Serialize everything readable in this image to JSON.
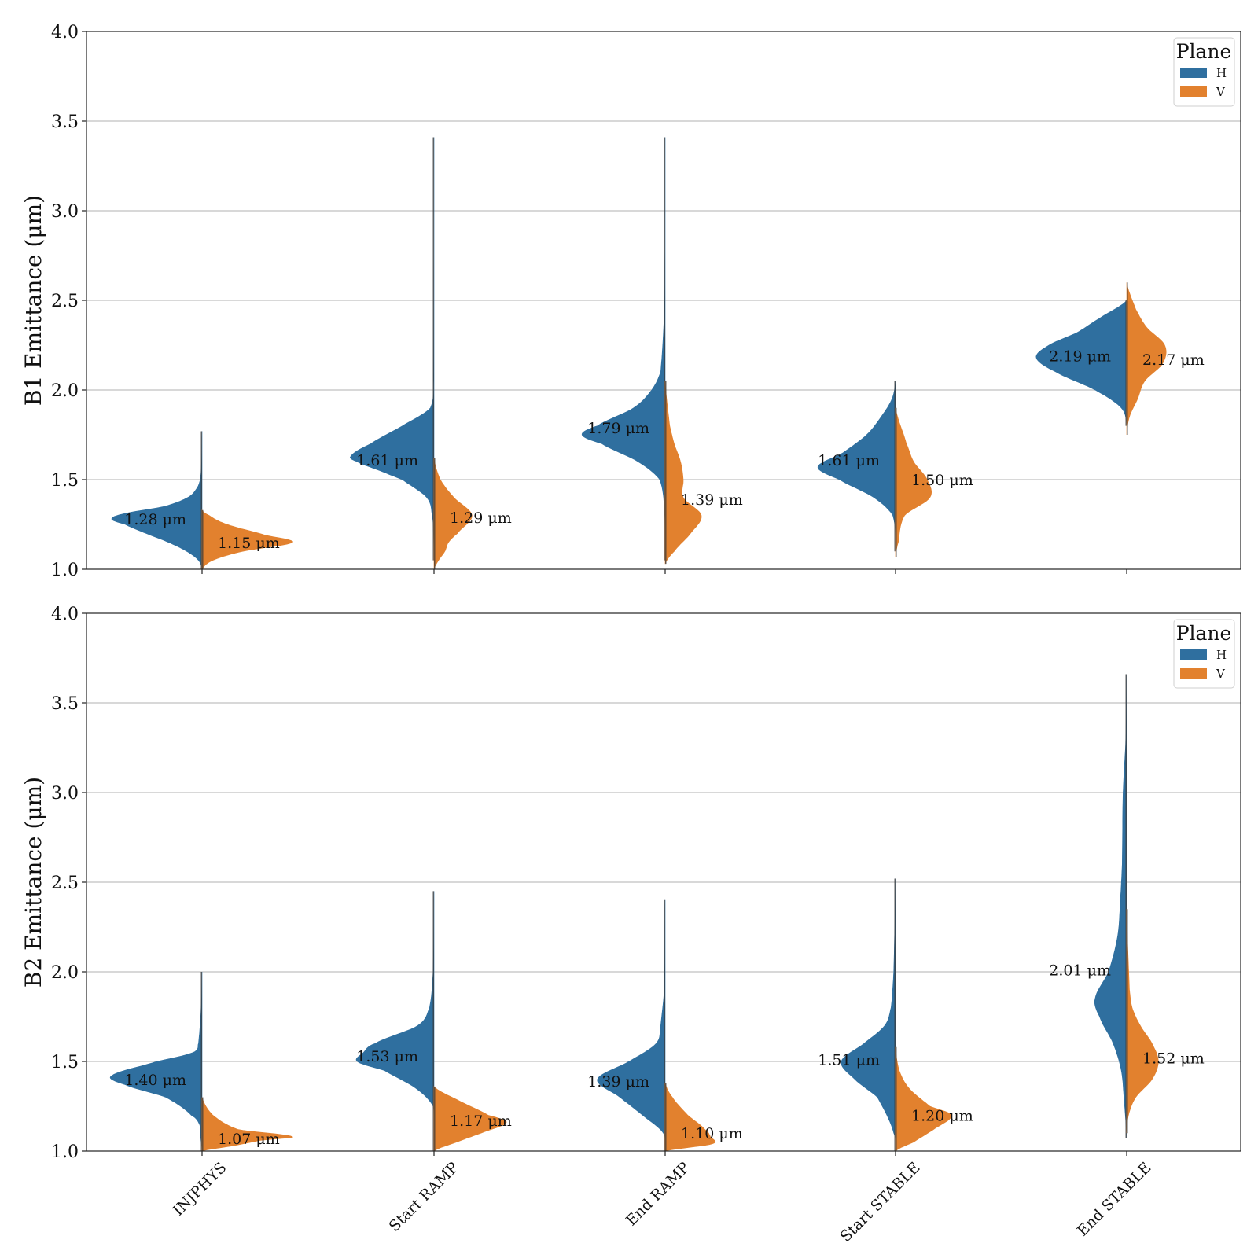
{
  "chart_data": [
    {
      "type": "violin",
      "ylabel": "B1 Emittance (μm)",
      "ylim": [
        1.0,
        4.0
      ],
      "yticks": [
        "1.0",
        "1.5",
        "2.0",
        "2.5",
        "3.0",
        "3.5",
        "4.0"
      ],
      "grid": true,
      "legend": {
        "title": "Plane",
        "placement": "top-right",
        "entries": [
          "H",
          "V"
        ]
      },
      "categories": [
        "INJPHYS",
        "Start RAMP",
        "End RAMP",
        "Start STABLE",
        "End STABLE"
      ],
      "series": [
        {
          "name": "H",
          "color": "#2f6f9f",
          "median_labels": [
            "1.28 μm",
            "1.61 μm",
            "1.79 μm",
            "1.61 μm",
            "2.19 μm"
          ],
          "medians": [
            1.28,
            1.61,
            1.79,
            1.61,
            2.19
          ],
          "range": [
            [
              1.0,
              1.77
            ],
            [
              1.05,
              3.41
            ],
            [
              1.05,
              3.41
            ],
            [
              1.1,
              2.05
            ],
            [
              1.8,
              2.5
            ]
          ],
          "density": [
            [
              [
                1.0,
                0
              ],
              [
                1.05,
                0.04
              ],
              [
                1.1,
                0.17
              ],
              [
                1.15,
                0.37
              ],
              [
                1.2,
                0.62
              ],
              [
                1.25,
                0.85
              ],
              [
                1.28,
                1.0
              ],
              [
                1.31,
                0.86
              ],
              [
                1.35,
                0.42
              ],
              [
                1.4,
                0.16
              ],
              [
                1.45,
                0.06
              ],
              [
                1.5,
                0.02
              ],
              [
                1.6,
                0.005
              ],
              [
                1.77,
                0
              ]
            ],
            [
              [
                1.05,
                0
              ],
              [
                1.2,
                0.006
              ],
              [
                1.3,
                0.02
              ],
              [
                1.4,
                0.08
              ],
              [
                1.5,
                0.35
              ],
              [
                1.55,
                0.6
              ],
              [
                1.6,
                0.85
              ],
              [
                1.63,
                0.92
              ],
              [
                1.7,
                0.7
              ],
              [
                1.8,
                0.35
              ],
              [
                1.9,
                0.04
              ],
              [
                2.1,
                0.005
              ],
              [
                3.41,
                0
              ]
            ],
            [
              [
                1.05,
                0
              ],
              [
                1.3,
                0.005
              ],
              [
                1.5,
                0.06
              ],
              [
                1.6,
                0.3
              ],
              [
                1.7,
                0.7
              ],
              [
                1.75,
                0.92
              ],
              [
                1.8,
                0.75
              ],
              [
                1.9,
                0.35
              ],
              [
                2.0,
                0.15
              ],
              [
                2.1,
                0.05
              ],
              [
                2.5,
                0.005
              ],
              [
                3.41,
                0
              ]
            ],
            [
              [
                1.1,
                0
              ],
              [
                1.3,
                0.03
              ],
              [
                1.4,
                0.24
              ],
              [
                1.5,
                0.62
              ],
              [
                1.57,
                0.86
              ],
              [
                1.65,
                0.58
              ],
              [
                1.75,
                0.32
              ],
              [
                1.85,
                0.16
              ],
              [
                1.95,
                0.04
              ],
              [
                2.05,
                0
              ]
            ],
            [
              [
                1.8,
                0
              ],
              [
                1.9,
                0.06
              ],
              [
                2.0,
                0.35
              ],
              [
                2.1,
                0.78
              ],
              [
                2.18,
                1.0
              ],
              [
                2.25,
                0.86
              ],
              [
                2.32,
                0.55
              ],
              [
                2.4,
                0.3
              ],
              [
                2.5,
                0
              ]
            ]
          ]
        },
        {
          "name": "V",
          "color": "#e2812e",
          "median_labels": [
            "1.15 μm",
            "1.29 μm",
            "1.39 μm",
            "1.50 μm",
            "2.17 μm"
          ],
          "medians": [
            1.15,
            1.29,
            1.39,
            1.5,
            2.17
          ],
          "range": [
            [
              1.0,
              1.33
            ],
            [
              1.0,
              1.62
            ],
            [
              1.03,
              2.05
            ],
            [
              1.07,
              1.9
            ],
            [
              1.75,
              2.6
            ]
          ],
          "density": [
            [
              [
                1.0,
                0
              ],
              [
                1.05,
                0.12
              ],
              [
                1.1,
                0.45
              ],
              [
                1.15,
                1.0
              ],
              [
                1.19,
                0.7
              ],
              [
                1.25,
                0.28
              ],
              [
                1.3,
                0.08
              ],
              [
                1.33,
                0
              ]
            ],
            [
              [
                1.0,
                0
              ],
              [
                1.05,
                0.05
              ],
              [
                1.1,
                0.12
              ],
              [
                1.15,
                0.16
              ],
              [
                1.2,
                0.26
              ],
              [
                1.3,
                0.42
              ],
              [
                1.4,
                0.22
              ],
              [
                1.5,
                0.07
              ],
              [
                1.62,
                0
              ]
            ],
            [
              [
                1.03,
                0
              ],
              [
                1.1,
                0.1
              ],
              [
                1.2,
                0.28
              ],
              [
                1.3,
                0.4
              ],
              [
                1.4,
                0.2
              ],
              [
                1.5,
                0.2
              ],
              [
                1.6,
                0.17
              ],
              [
                1.7,
                0.1
              ],
              [
                1.8,
                0.05
              ],
              [
                2.05,
                0
              ]
            ],
            [
              [
                1.07,
                0
              ],
              [
                1.15,
                0.03
              ],
              [
                1.3,
                0.1
              ],
              [
                1.4,
                0.38
              ],
              [
                1.5,
                0.35
              ],
              [
                1.6,
                0.2
              ],
              [
                1.7,
                0.12
              ],
              [
                1.9,
                0
              ]
            ],
            [
              [
                1.75,
                0
              ],
              [
                1.85,
                0.03
              ],
              [
                1.95,
                0.12
              ],
              [
                2.05,
                0.2
              ],
              [
                2.15,
                0.4
              ],
              [
                2.25,
                0.42
              ],
              [
                2.35,
                0.22
              ],
              [
                2.45,
                0.1
              ],
              [
                2.6,
                0
              ]
            ]
          ]
        }
      ]
    },
    {
      "type": "violin",
      "ylabel": "B2 Emittance (μm)",
      "ylim": [
        1.0,
        4.0
      ],
      "yticks": [
        "1.0",
        "1.5",
        "2.0",
        "2.5",
        "3.0",
        "3.5",
        "4.0"
      ],
      "grid": true,
      "legend": {
        "title": "Plane",
        "placement": "top-right",
        "entries": [
          "H",
          "V"
        ]
      },
      "categories": [
        "INJPHYS",
        "Start RAMP",
        "End RAMP",
        "Start STABLE",
        "End STABLE"
      ],
      "series": [
        {
          "name": "H",
          "color": "#2f6f9f",
          "median_labels": [
            "1.40 μm",
            "1.53 μm",
            "1.39 μm",
            "1.51 μm",
            "2.01 μm"
          ],
          "medians": [
            1.4,
            1.53,
            1.39,
            1.51,
            2.01
          ],
          "range": [
            [
              1.0,
              2.0
            ],
            [
              1.0,
              2.45
            ],
            [
              1.0,
              2.4
            ],
            [
              1.0,
              2.52
            ],
            [
              1.07,
              3.66
            ]
          ],
          "density": [
            [
              [
                1.0,
                0
              ],
              [
                1.1,
                0.02
              ],
              [
                1.15,
                0.03
              ],
              [
                1.2,
                0.12
              ],
              [
                1.3,
                0.4
              ],
              [
                1.37,
                0.85
              ],
              [
                1.42,
                1.0
              ],
              [
                1.5,
                0.5
              ],
              [
                1.55,
                0.1
              ],
              [
                1.6,
                0.04
              ],
              [
                1.8,
                0.01
              ],
              [
                2.0,
                0
              ]
            ],
            [
              [
                1.0,
                0
              ],
              [
                1.25,
                0.01
              ],
              [
                1.35,
                0.2
              ],
              [
                1.45,
                0.55
              ],
              [
                1.5,
                0.85
              ],
              [
                1.55,
                0.78
              ],
              [
                1.6,
                0.65
              ],
              [
                1.7,
                0.18
              ],
              [
                1.8,
                0.05
              ],
              [
                2.0,
                0.01
              ],
              [
                2.45,
                0
              ]
            ],
            [
              [
                1.0,
                0
              ],
              [
                1.1,
                0.02
              ],
              [
                1.2,
                0.25
              ],
              [
                1.3,
                0.5
              ],
              [
                1.4,
                0.75
              ],
              [
                1.5,
                0.4
              ],
              [
                1.6,
                0.1
              ],
              [
                1.7,
                0.05
              ],
              [
                1.9,
                0.01
              ],
              [
                2.4,
                0
              ]
            ],
            [
              [
                1.0,
                0
              ],
              [
                1.1,
                0.02
              ],
              [
                1.3,
                0.2
              ],
              [
                1.4,
                0.45
              ],
              [
                1.5,
                0.6
              ],
              [
                1.6,
                0.35
              ],
              [
                1.7,
                0.12
              ],
              [
                1.8,
                0.05
              ],
              [
                2.0,
                0.02
              ],
              [
                2.52,
                0
              ]
            ],
            [
              [
                1.07,
                0
              ],
              [
                1.3,
                0.03
              ],
              [
                1.45,
                0.06
              ],
              [
                1.6,
                0.15
              ],
              [
                1.75,
                0.3
              ],
              [
                1.85,
                0.35
              ],
              [
                2.0,
                0.2
              ],
              [
                2.2,
                0.1
              ],
              [
                2.4,
                0.07
              ],
              [
                2.6,
                0.05
              ],
              [
                3.0,
                0.04
              ],
              [
                3.3,
                0.01
              ],
              [
                3.66,
                0
              ]
            ]
          ]
        },
        {
          "name": "V",
          "color": "#e2812e",
          "median_labels": [
            "1.07 μm",
            "1.17 μm",
            "1.10 μm",
            "1.20 μm",
            "1.52 μm"
          ],
          "medians": [
            1.07,
            1.17,
            1.1,
            1.2,
            1.52
          ],
          "range": [
            [
              1.0,
              1.3
            ],
            [
              1.0,
              1.36
            ],
            [
              1.0,
              1.38
            ],
            [
              1.0,
              1.58
            ],
            [
              1.1,
              2.35
            ]
          ],
          "density": [
            [
              [
                1.0,
                0
              ],
              [
                1.03,
                0.35
              ],
              [
                1.06,
                0.65
              ],
              [
                1.08,
                1.0
              ],
              [
                1.12,
                0.4
              ],
              [
                1.2,
                0.12
              ],
              [
                1.3,
                0
              ]
            ],
            [
              [
                1.0,
                0
              ],
              [
                1.05,
                0.25
              ],
              [
                1.1,
                0.52
              ],
              [
                1.16,
                0.8
              ],
              [
                1.2,
                0.6
              ],
              [
                1.28,
                0.28
              ],
              [
                1.36,
                0
              ]
            ],
            [
              [
                1.0,
                0
              ],
              [
                1.04,
                0.52
              ],
              [
                1.08,
                0.5
              ],
              [
                1.12,
                0.44
              ],
              [
                1.2,
                0.25
              ],
              [
                1.3,
                0.08
              ],
              [
                1.38,
                0
              ]
            ],
            [
              [
                1.0,
                0
              ],
              [
                1.05,
                0.2
              ],
              [
                1.12,
                0.42
              ],
              [
                1.2,
                0.62
              ],
              [
                1.25,
                0.38
              ],
              [
                1.35,
                0.15
              ],
              [
                1.45,
                0.04
              ],
              [
                1.58,
                0
              ]
            ],
            [
              [
                1.1,
                0
              ],
              [
                1.2,
                0.02
              ],
              [
                1.3,
                0.1
              ],
              [
                1.4,
                0.28
              ],
              [
                1.5,
                0.35
              ],
              [
                1.6,
                0.28
              ],
              [
                1.7,
                0.15
              ],
              [
                1.8,
                0.06
              ],
              [
                1.9,
                0.03
              ],
              [
                2.35,
                0
              ]
            ]
          ]
        }
      ]
    }
  ]
}
